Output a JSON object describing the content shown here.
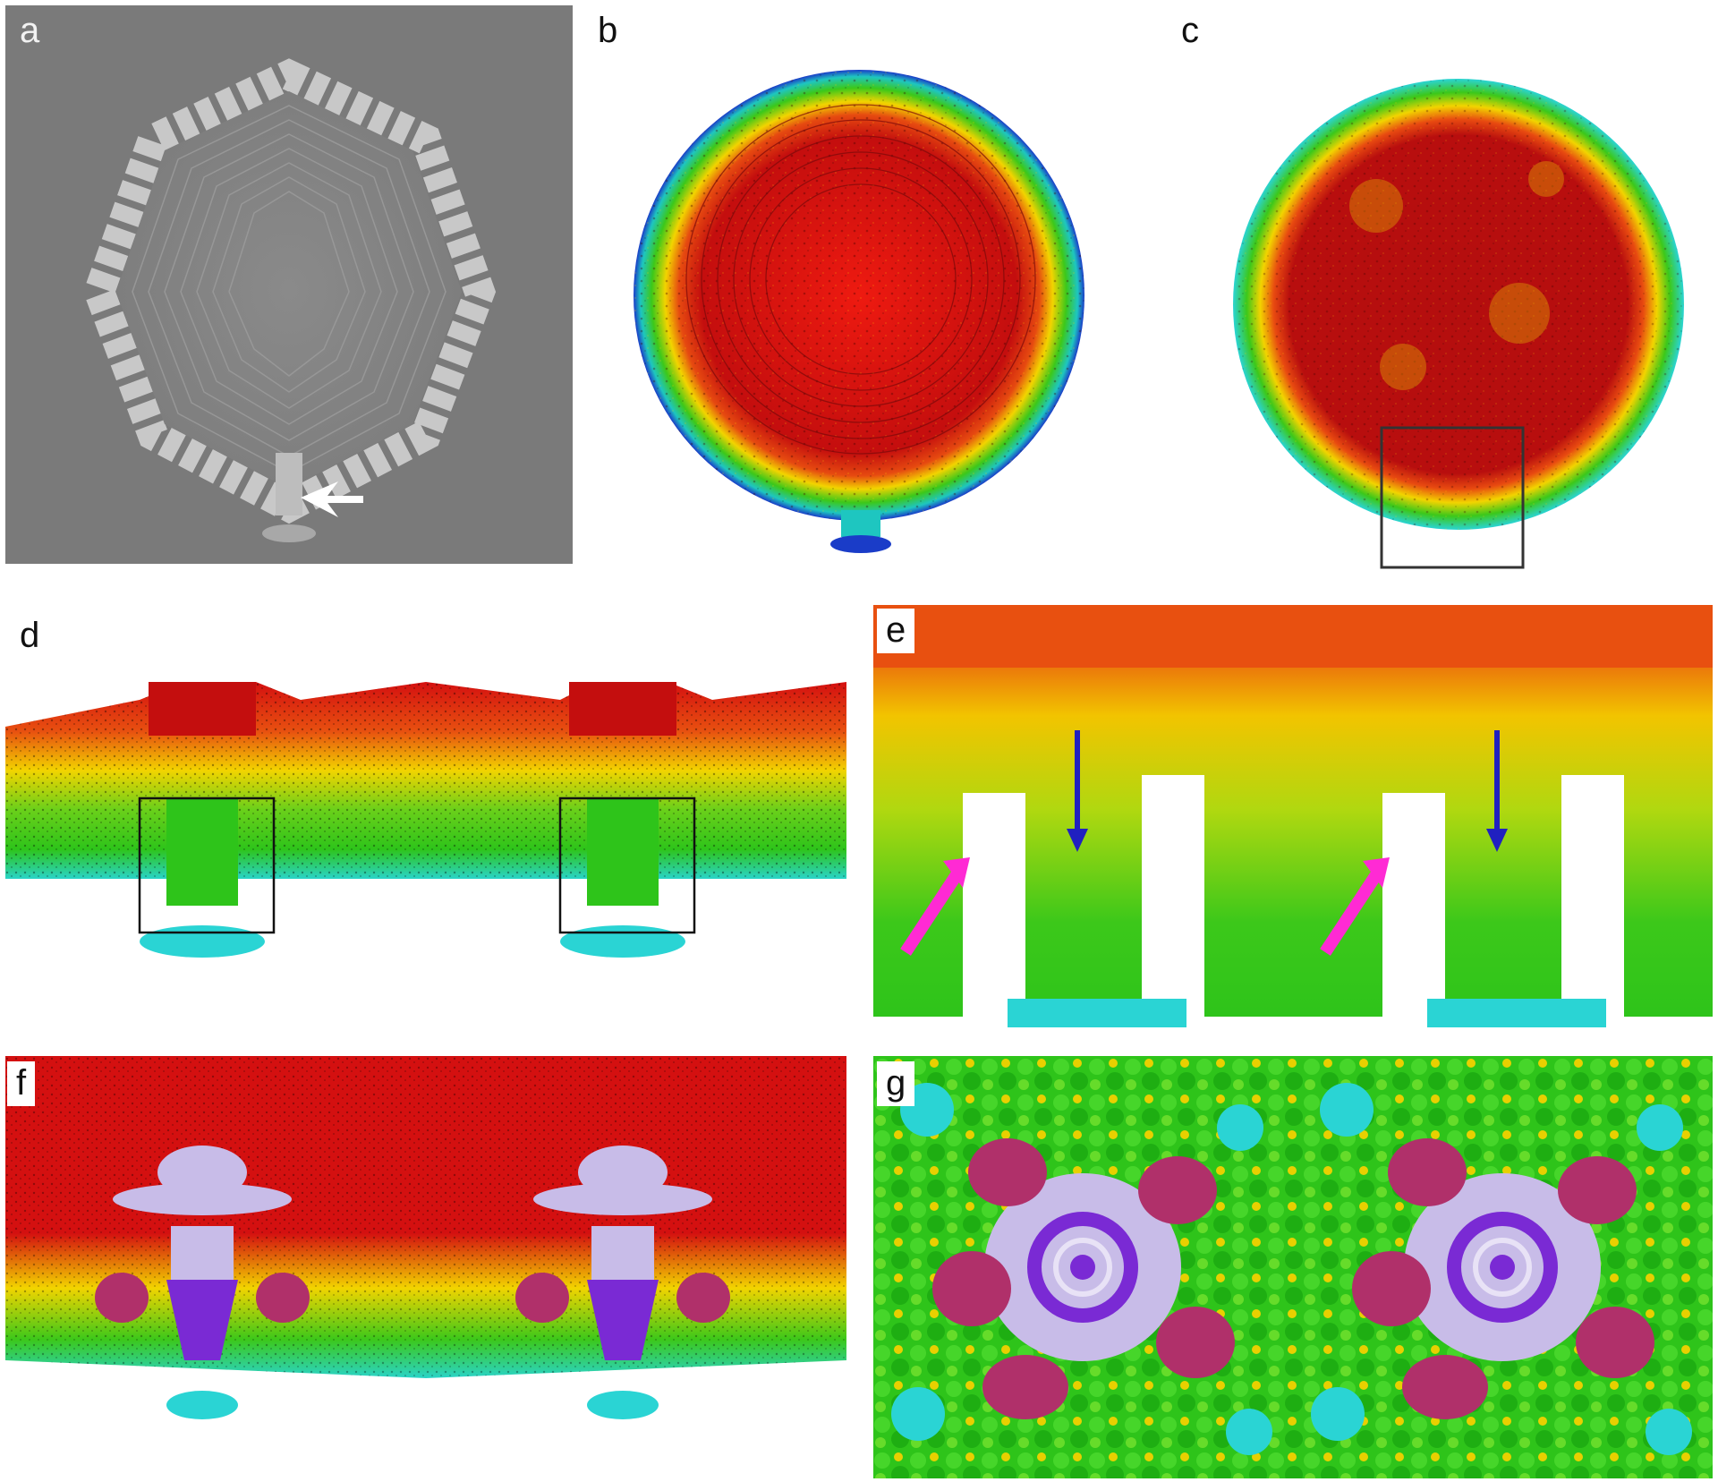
{
  "figure": {
    "panels": [
      {
        "id": "a",
        "label": "a"
      },
      {
        "id": "b",
        "label": "b"
      },
      {
        "id": "c",
        "label": "c"
      },
      {
        "id": "d",
        "label": "d"
      },
      {
        "id": "e",
        "label": "e"
      },
      {
        "id": "f",
        "label": "f"
      },
      {
        "id": "g",
        "label": "g"
      }
    ]
  },
  "colors": {
    "background_gray": "#7a7a7a",
    "core_red": "#d41010",
    "shell_yellow": "#f2d400",
    "shell_green": "#2ec41a",
    "tail_cyan": "#2ad4d4",
    "tail_blue": "#1a3cc8",
    "arrow_magenta": "#ff2ad4",
    "arrow_blue": "#2020c0",
    "portal_lavender": "#c8bce8",
    "portal_purple": "#7a2ad4",
    "adaptor_plum": "#b0306a"
  }
}
